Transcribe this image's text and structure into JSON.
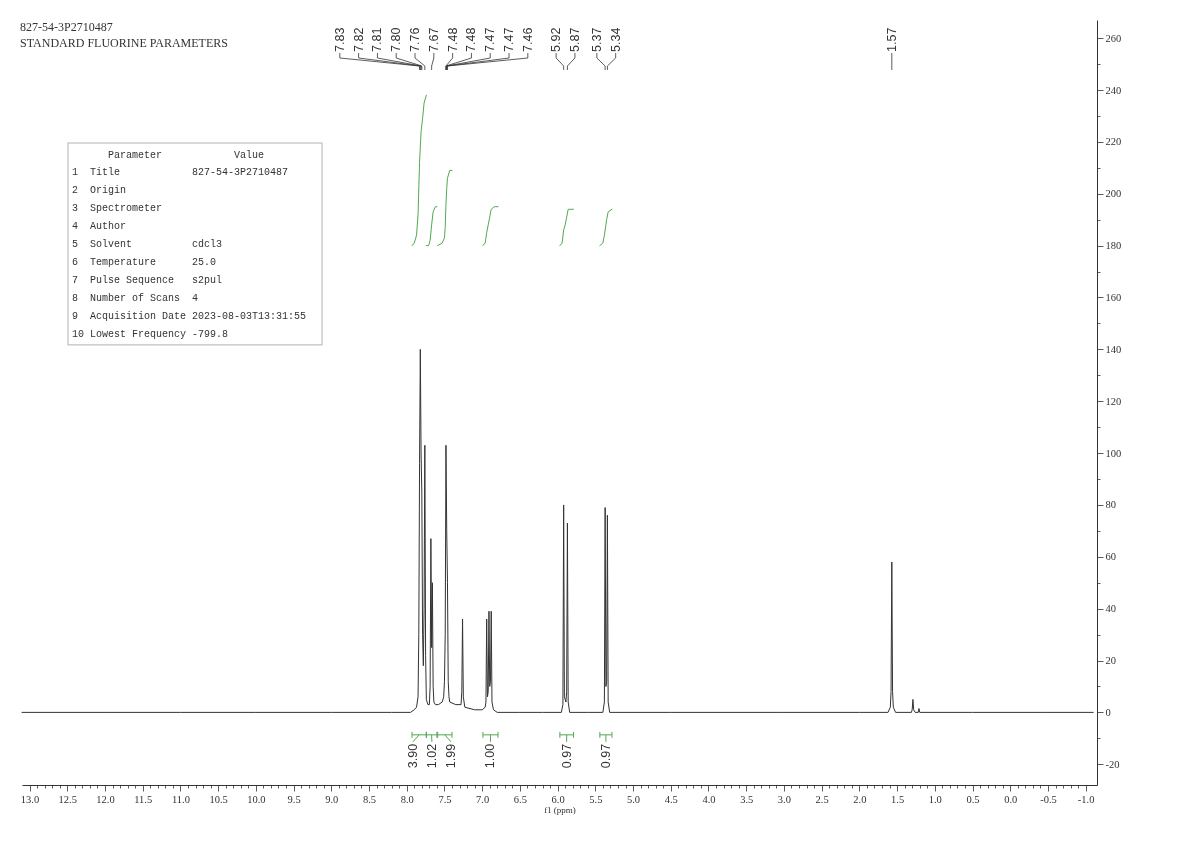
{
  "chart_data": {
    "type": "line",
    "title": "827-54-3P2710487",
    "subtitle": "STANDARD FLUORINE PARAMETERS",
    "xlabel": "f1 (ppm)",
    "xlim": [
      13.1,
      -1.15
    ],
    "ylim": [
      -28,
      267
    ],
    "xticks": [
      {
        "value": 13,
        "label": "13.0"
      },
      {
        "value": 12.9,
        "label": null
      },
      {
        "value": 12.8,
        "label": null
      },
      {
        "value": 12.7,
        "label": null
      },
      {
        "value": 12.6,
        "label": null
      },
      12.5,
      {
        "value": 12.4,
        "label": null
      },
      {
        "value": 12.3,
        "label": null
      },
      {
        "value": 12.2,
        "label": null
      },
      {
        "value": 12.1,
        "label": null
      },
      {
        "value": 12,
        "label": "12.0"
      },
      {
        "value": 11.9,
        "label": null
      },
      {
        "value": 11.8,
        "label": null
      },
      {
        "value": 11.7,
        "label": null
      },
      {
        "value": 11.6,
        "label": null
      },
      11.5,
      {
        "value": 11.4,
        "label": null
      },
      {
        "value": 11.3,
        "label": null
      },
      {
        "value": 11.2,
        "label": null
      },
      {
        "value": 11.1,
        "label": null
      },
      {
        "value": 11,
        "label": "11.0"
      },
      {
        "value": 10.9,
        "label": null
      },
      {
        "value": 10.8,
        "label": null
      },
      {
        "value": 10.7,
        "label": null
      },
      {
        "value": 10.6,
        "label": null
      },
      10.5,
      {
        "value": 10.4,
        "label": null
      },
      {
        "value": 10.3,
        "label": null
      },
      {
        "value": 10.2,
        "label": null
      },
      {
        "value": 10.1,
        "label": null
      },
      {
        "value": 10,
        "label": "10.0"
      },
      {
        "value": 9.9,
        "label": null
      },
      {
        "value": 9.8,
        "label": null
      },
      {
        "value": 9.7,
        "label": null
      },
      {
        "value": 9.6,
        "label": null
      },
      9.5,
      {
        "value": 9.4,
        "label": null
      },
      {
        "value": 9.3,
        "label": null
      },
      {
        "value": 9.2,
        "label": null
      },
      {
        "value": 9.1,
        "label": null
      },
      {
        "value": 9,
        "label": "9.0"
      },
      {
        "value": 8.9,
        "label": null
      },
      {
        "value": 8.8,
        "label": null
      },
      {
        "value": 8.7,
        "label": null
      },
      {
        "value": 8.6,
        "label": null
      },
      8.5,
      {
        "value": 8.4,
        "label": null
      },
      {
        "value": 8.3,
        "label": null
      },
      {
        "value": 8.2,
        "label": null
      },
      {
        "value": 8.1,
        "label": null
      },
      {
        "value": 8,
        "label": "8.0"
      },
      {
        "value": 7.9,
        "label": null
      },
      {
        "value": 7.8,
        "label": null
      },
      {
        "value": 7.7,
        "label": null
      },
      {
        "value": 7.6,
        "label": null
      },
      7.5,
      {
        "value": 7.4,
        "label": null
      },
      {
        "value": 7.3,
        "label": null
      },
      {
        "value": 7.2,
        "label": null
      },
      {
        "value": 7.1,
        "label": null
      },
      {
        "value": 7,
        "label": "7.0"
      },
      {
        "value": 6.9,
        "label": null
      },
      {
        "value": 6.8,
        "label": null
      },
      {
        "value": 6.7,
        "label": null
      },
      {
        "value": 6.6,
        "label": null
      },
      6.5,
      {
        "value": 6.4,
        "label": null
      },
      {
        "value": 6.3,
        "label": null
      },
      {
        "value": 6.2,
        "label": null
      },
      {
        "value": 6.1,
        "label": null
      },
      {
        "value": 6,
        "label": "6.0"
      },
      {
        "value": 5.9,
        "label": null
      },
      {
        "value": 5.8,
        "label": null
      },
      {
        "value": 5.7,
        "label": null
      },
      {
        "value": 5.6,
        "label": null
      },
      5.5,
      {
        "value": 5.4,
        "label": null
      },
      {
        "value": 5.3,
        "label": null
      },
      {
        "value": 5.2,
        "label": null
      },
      {
        "value": 5.1,
        "label": null
      },
      {
        "value": 5,
        "label": "5.0"
      },
      {
        "value": 4.9,
        "label": null
      },
      {
        "value": 4.8,
        "label": null
      },
      {
        "value": 4.7,
        "label": null
      },
      {
        "value": 4.6,
        "label": null
      },
      4.5,
      {
        "value": 4.4,
        "label": null
      },
      {
        "value": 4.3,
        "label": null
      },
      {
        "value": 4.2,
        "label": null
      },
      {
        "value": 4.1,
        "label": null
      },
      {
        "value": 4,
        "label": "4.0"
      },
      {
        "value": 3.9,
        "label": null
      },
      {
        "value": 3.8,
        "label": null
      },
      {
        "value": 3.7,
        "label": null
      },
      {
        "value": 3.6,
        "label": null
      },
      3.5,
      {
        "value": 3.4,
        "label": null
      },
      {
        "value": 3.3,
        "label": null
      },
      {
        "value": 3.2,
        "label": null
      },
      {
        "value": 3.1,
        "label": null
      },
      {
        "value": 3,
        "label": "3.0"
      },
      {
        "value": 2.9,
        "label": null
      },
      {
        "value": 2.8,
        "label": null
      },
      {
        "value": 2.7,
        "label": null
      },
      {
        "value": 2.6,
        "label": null
      },
      2.5,
      {
        "value": 2.4,
        "label": null
      },
      {
        "value": 2.3,
        "label": null
      },
      {
        "value": 2.2,
        "label": null
      },
      {
        "value": 2.1,
        "label": null
      },
      {
        "value": 2,
        "label": "2.0"
      },
      {
        "value": 1.9,
        "label": null
      },
      {
        "value": 1.8,
        "label": null
      },
      {
        "value": 1.7,
        "label": null
      },
      {
        "value": 1.6,
        "label": null
      },
      1.5,
      {
        "value": 1.4,
        "label": null
      },
      {
        "value": 1.3,
        "label": null
      },
      {
        "value": 1.2,
        "label": null
      },
      {
        "value": 1.1,
        "label": null
      },
      {
        "value": 1,
        "label": "1.0"
      },
      {
        "value": 0.9,
        "label": null
      },
      {
        "value": 0.8,
        "label": null
      },
      {
        "value": 0.7,
        "label": null
      },
      {
        "value": 0.6,
        "label": null
      },
      0.5,
      {
        "value": 0.4,
        "label": null
      },
      {
        "value": 0.3,
        "label": null
      },
      {
        "value": 0.2,
        "label": null
      },
      {
        "value": 0.1,
        "label": null
      },
      {
        "value": 0,
        "label": "0.0"
      },
      {
        "value": -0.1,
        "label": null
      },
      {
        "value": -0.2,
        "label": null
      },
      {
        "value": -0.3,
        "label": null
      },
      {
        "value": -0.4,
        "label": null
      },
      -0.5,
      {
        "value": -0.6,
        "label": null
      },
      {
        "value": -0.7,
        "label": null
      },
      {
        "value": -0.8,
        "label": null
      },
      {
        "value": -0.9,
        "label": null
      },
      {
        "value": -1,
        "label": "-1.0"
      }
    ],
    "yticks": [
      -20,
      {
        "value": -10,
        "label": null
      },
      0,
      {
        "value": 10,
        "label": null
      },
      20,
      {
        "value": 30,
        "label": null
      },
      40,
      {
        "value": 50,
        "label": null
      },
      60,
      {
        "value": 70,
        "label": null
      },
      80,
      {
        "value": 90,
        "label": null
      },
      100,
      {
        "value": 110,
        "label": null
      },
      120,
      {
        "value": 130,
        "label": null
      },
      140,
      {
        "value": 150,
        "label": null
      },
      160,
      {
        "value": 170,
        "label": null
      },
      180,
      {
        "value": 190,
        "label": null
      },
      200,
      {
        "value": 210,
        "label": null
      },
      220,
      {
        "value": 230,
        "label": null
      },
      240,
      {
        "value": 250,
        "label": null
      },
      260
    ],
    "series": [
      {
        "color": "#333333",
        "x": [
          13.1,
          12,
          11,
          10,
          9,
          8.2,
          7.95,
          7.9,
          7.87,
          7.85,
          7.84,
          7.83,
          7.82,
          7.81,
          7.8,
          7.79,
          7.78,
          7.77,
          7.76,
          7.75,
          7.74,
          7.72,
          7.7,
          7.69,
          7.68,
          7.67,
          7.66,
          7.65,
          7.64,
          7.62,
          7.58,
          7.53,
          7.51,
          7.5,
          7.49,
          7.48,
          7.47,
          7.46,
          7.45,
          7.44,
          7.43,
          7.35,
          7.28,
          7.27,
          7.26,
          7.25,
          7.23,
          7.1,
          7,
          6.96,
          6.95,
          6.94,
          6.93,
          6.92,
          6.91,
          6.9,
          6.89,
          6.88,
          6.87,
          6.85,
          6.8,
          6.5,
          6.2,
          5.95,
          5.93,
          5.92,
          5.91,
          5.89,
          5.88,
          5.87,
          5.86,
          5.84,
          5.6,
          5.4,
          5.38,
          5.37,
          5.36,
          5.35,
          5.34,
          5.33,
          5.31,
          4.5,
          3,
          2,
          1.62,
          1.59,
          1.58,
          1.57,
          1.56,
          1.55,
          1.52,
          1.31,
          1.3,
          1.29,
          1.28,
          1.26,
          1.22,
          1.21,
          1.2,
          0.5,
          -0.5,
          -1.1
        ],
        "values": [
          0,
          0,
          0,
          0,
          0,
          0,
          0,
          1,
          2,
          6,
          30,
          96,
          140,
          100,
          85,
          30,
          18,
          40,
          103,
          22,
          5,
          3,
          3,
          10,
          67,
          25,
          50,
          10,
          4,
          3,
          3,
          4,
          6,
          12,
          30,
          103,
          70,
          50,
          12,
          6,
          4,
          3,
          3,
          8,
          36,
          6,
          2,
          1,
          1,
          2,
          4,
          36,
          6,
          8,
          39,
          10,
          12,
          39,
          4,
          1,
          0,
          0,
          0,
          0,
          3,
          80,
          6,
          4,
          8,
          73,
          4,
          0,
          0,
          0,
          4,
          79,
          10,
          12,
          76,
          4,
          0,
          0,
          0,
          0,
          0,
          2,
          8,
          58,
          8,
          2,
          0,
          0,
          1,
          5,
          1,
          0,
          0,
          1.5,
          0,
          0,
          0,
          0
        ]
      },
      {
        "color": "#52a852",
        "x": [
          7.93,
          7.9,
          7.87,
          7.85,
          7.83,
          7.81,
          7.79,
          7.77,
          7.74
        ],
        "values": [
          180,
          181,
          184,
          192,
          212,
          224,
          229,
          235,
          238
        ]
      },
      {
        "color": "#52a852",
        "x": [
          7.74,
          7.71,
          7.69,
          7.67,
          7.65,
          7.62,
          7.6
        ],
        "values": [
          180,
          180,
          182,
          188,
          193,
          195,
          195
        ]
      },
      {
        "color": "#52a852",
        "x": [
          7.59,
          7.53,
          7.5,
          7.49,
          7.48,
          7.47,
          7.46,
          7.43,
          7.4
        ],
        "values": [
          180,
          181,
          183,
          187,
          196,
          202,
          206,
          209,
          209
        ]
      },
      {
        "color": "#52a852",
        "x": [
          6.99,
          6.96,
          6.94,
          6.92,
          6.9,
          6.88,
          6.84,
          6.79
        ],
        "values": [
          180,
          181,
          185,
          188,
          191,
          194,
          195,
          195
        ]
      },
      {
        "color": "#52a852",
        "x": [
          5.97,
          5.94,
          5.92,
          5.9,
          5.88,
          5.86,
          5.79
        ],
        "values": [
          180,
          181,
          186,
          188,
          191,
          194,
          194
        ]
      },
      {
        "color": "#52a852",
        "x": [
          5.44,
          5.4,
          5.38,
          5.36,
          5.35,
          5.33,
          5.28
        ],
        "values": [
          180,
          181,
          184,
          188,
          190,
          193,
          194
        ]
      }
    ],
    "annotations": [
      "      Parameter            Value",
      "1  Title            827-54-3P2710487",
      "2  Origin",
      "3  Spectrometer",
      "4  Author",
      "5  Solvent          cdcl3",
      "6  Temperature      25.0",
      "7  Pulse Sequence   s2pul",
      "8  Number of Scans  4",
      "9  Acquisition Date 2023-08-03T13:31:55",
      "10 Lowest Frequency -799.8",
      "7.83",
      "7.82",
      "7.81",
      "7.80",
      "7.76",
      "7.67",
      "7.48",
      "7.48",
      "7.47",
      "7.47",
      "7.46",
      "5.92",
      "5.87",
      "5.37",
      "5.34",
      "1.57",
      "3.90",
      "1.02",
      "1.99",
      "1.00",
      "0.97",
      "0.97"
    ]
  }
}
